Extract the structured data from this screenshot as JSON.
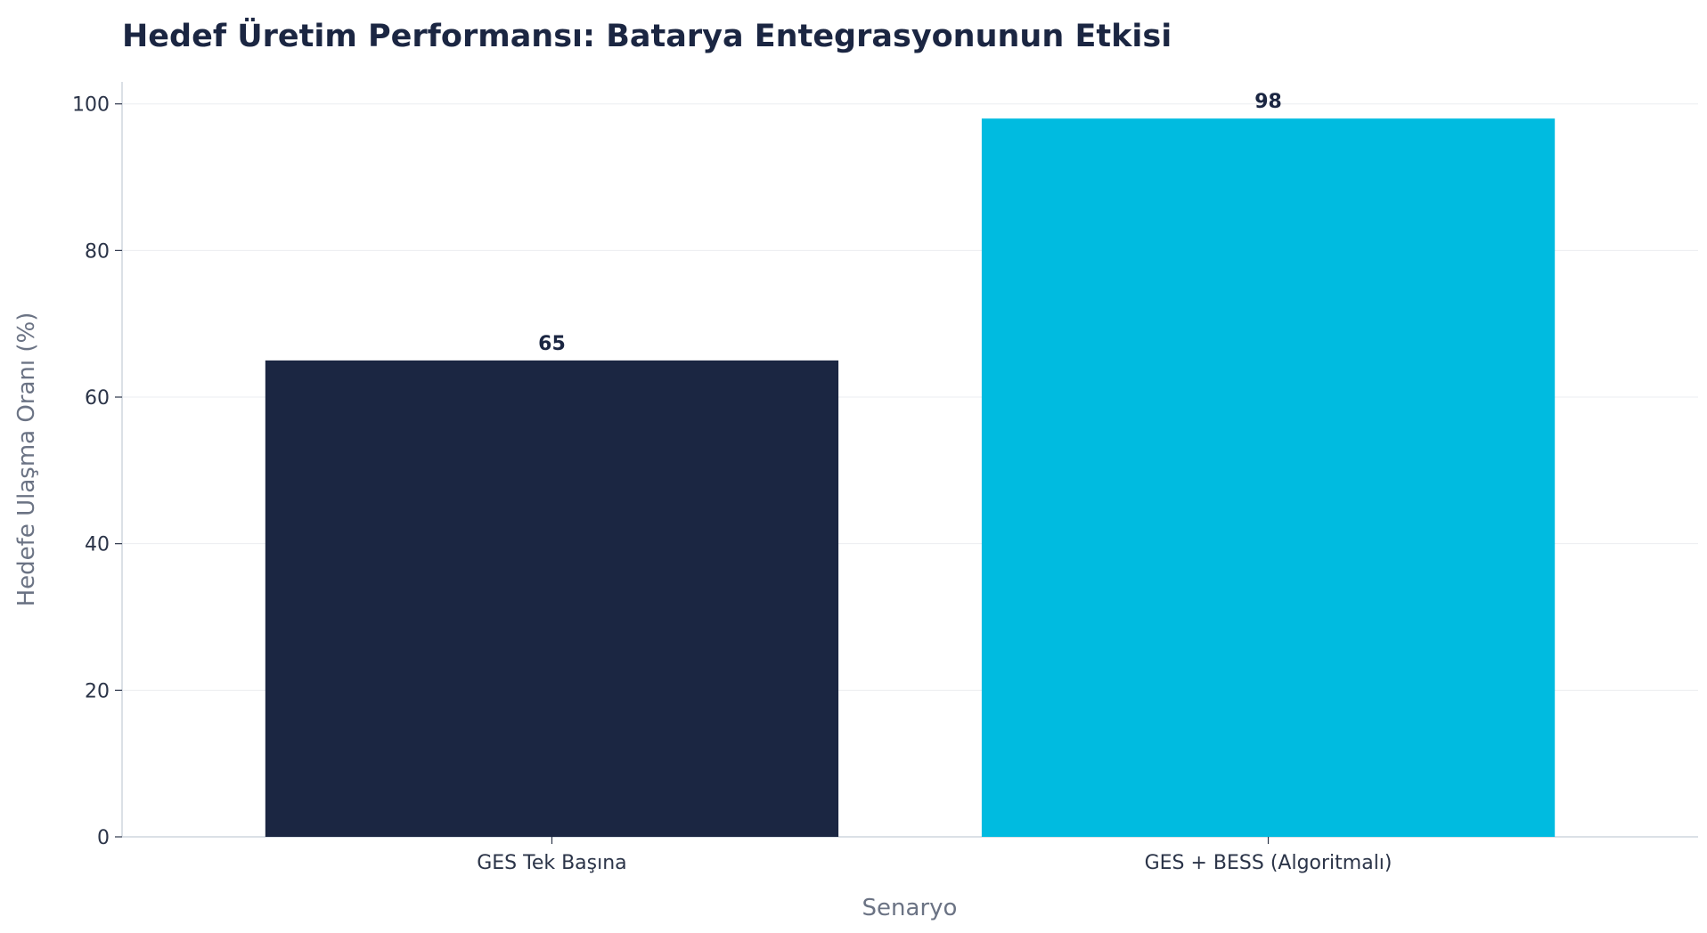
{
  "chart_data": {
    "type": "bar",
    "title": "Hedef Üretim Performansı: Batarya Entegrasyonunun Etkisi",
    "xlabel": "Senaryo",
    "ylabel": "Hedefe Ulaşma Oranı (%)",
    "categories": [
      "GES Tek Başına",
      "GES + BESS (Algoritmalı)"
    ],
    "values": [
      65,
      98
    ],
    "bar_colors": [
      "#1b2642",
      "#00bbe0"
    ],
    "value_labels": [
      "65",
      "98"
    ],
    "ylim": [
      0,
      103
    ],
    "yticks": [
      0,
      20,
      40,
      60,
      80,
      100
    ],
    "ytick_labels": [
      "0",
      "20",
      "40",
      "60",
      "80",
      "100"
    ],
    "grid": true,
    "grid_axis": "y"
  }
}
